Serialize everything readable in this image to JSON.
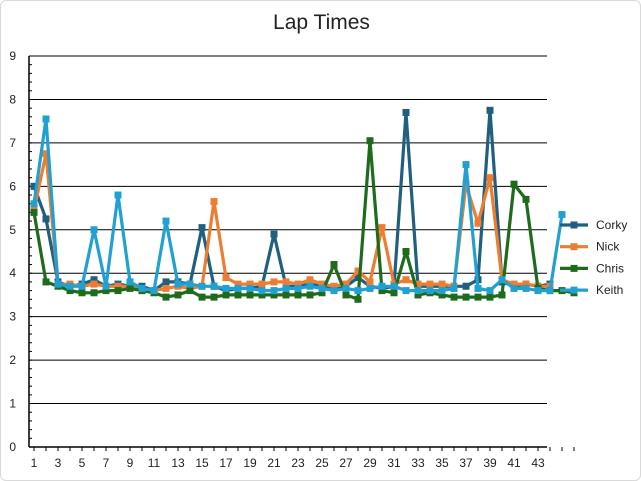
{
  "chart_data": {
    "type": "line",
    "title": "Lap Times",
    "xlabel": "",
    "ylabel": "",
    "ylim": [
      0,
      9
    ],
    "yticks": [
      "0",
      "1",
      "2",
      "3",
      "4",
      "5",
      "6",
      "7",
      "8",
      "9"
    ],
    "xlim": [
      1,
      46
    ],
    "xticks": [
      "1",
      "3",
      "5",
      "7",
      "9",
      "11",
      "13",
      "15",
      "17",
      "19",
      "21",
      "23",
      "25",
      "27",
      "29",
      "31",
      "33",
      "35",
      "37",
      "39",
      "41",
      "43"
    ],
    "grid": "horizontal",
    "legend_position": "right",
    "series": [
      {
        "name": "Corky",
        "color": "#1f5f7f",
        "x": [
          1,
          2,
          3,
          4,
          5,
          6,
          7,
          8,
          9,
          10,
          11,
          12,
          13,
          14,
          15,
          16,
          17,
          18,
          19,
          20,
          21,
          22,
          23,
          24,
          25,
          26,
          27,
          28,
          29,
          30,
          31,
          32,
          33,
          34,
          35,
          36,
          37,
          38,
          39,
          40,
          41,
          42,
          43,
          44
        ],
        "y": [
          6.0,
          5.25,
          3.8,
          3.7,
          3.75,
          3.85,
          3.7,
          3.75,
          3.7,
          3.7,
          3.6,
          3.8,
          3.8,
          3.75,
          5.05,
          3.7,
          3.6,
          3.65,
          3.65,
          3.7,
          4.9,
          3.7,
          3.7,
          3.75,
          3.7,
          3.65,
          3.7,
          3.9,
          3.7,
          3.65,
          3.7,
          7.7,
          3.7,
          3.7,
          3.7,
          3.7,
          3.7,
          3.85,
          7.75,
          3.8,
          3.7,
          3.75,
          3.7,
          3.75
        ]
      },
      {
        "name": "Nick",
        "color": "#ed7d31",
        "x": [
          1,
          2,
          3,
          4,
          5,
          6,
          7,
          8,
          9,
          10,
          11,
          12,
          13,
          14,
          15,
          16,
          17,
          18,
          19,
          20,
          21,
          22,
          23,
          24,
          25,
          26,
          27,
          28,
          29,
          30,
          31,
          32,
          33,
          34,
          35,
          36,
          37,
          38,
          39,
          40,
          41,
          42,
          43,
          44
        ],
        "y": [
          5.45,
          6.75,
          3.75,
          3.75,
          3.7,
          3.75,
          3.7,
          3.7,
          3.7,
          3.6,
          3.6,
          3.65,
          3.7,
          3.65,
          3.7,
          5.65,
          3.9,
          3.75,
          3.75,
          3.75,
          3.8,
          3.8,
          3.75,
          3.85,
          3.75,
          3.7,
          3.75,
          4.05,
          3.8,
          5.05,
          3.75,
          3.85,
          3.75,
          3.75,
          3.75,
          3.7,
          6.05,
          5.15,
          6.2,
          3.85,
          3.75,
          3.75,
          3.7,
          3.7
        ]
      },
      {
        "name": "Chris",
        "color": "#1e6b1e",
        "x": [
          1,
          2,
          3,
          4,
          5,
          6,
          7,
          8,
          9,
          10,
          11,
          12,
          13,
          14,
          15,
          16,
          17,
          18,
          19,
          20,
          21,
          22,
          23,
          24,
          25,
          26,
          27,
          28,
          29,
          30,
          31,
          32,
          33,
          34,
          35,
          36,
          37,
          38,
          39,
          40,
          41,
          42,
          43,
          44,
          45,
          46
        ],
        "y": [
          5.4,
          3.8,
          3.7,
          3.6,
          3.55,
          3.55,
          3.6,
          3.6,
          3.65,
          3.6,
          3.55,
          3.45,
          3.5,
          3.6,
          3.45,
          3.45,
          3.5,
          3.5,
          3.5,
          3.5,
          3.5,
          3.5,
          3.5,
          3.5,
          3.55,
          4.2,
          3.5,
          3.4,
          7.05,
          3.6,
          3.55,
          4.5,
          3.5,
          3.55,
          3.5,
          3.45,
          3.45,
          3.45,
          3.45,
          3.5,
          6.05,
          5.7,
          3.65,
          3.6,
          3.6,
          3.55
        ]
      },
      {
        "name": "Keith",
        "color": "#21a0d2",
        "x": [
          1,
          2,
          3,
          4,
          5,
          6,
          7,
          8,
          9,
          10,
          11,
          12,
          13,
          14,
          15,
          16,
          17,
          18,
          19,
          20,
          21,
          22,
          23,
          24,
          25,
          26,
          27,
          28,
          29,
          30,
          31,
          32,
          33,
          34,
          35,
          36,
          37,
          38,
          39,
          40,
          41,
          42,
          43,
          44,
          45
        ],
        "y": [
          5.6,
          7.55,
          3.75,
          3.7,
          3.7,
          5.0,
          3.7,
          5.8,
          3.8,
          3.65,
          3.6,
          5.2,
          3.75,
          3.75,
          3.7,
          3.7,
          3.65,
          3.65,
          3.65,
          3.6,
          3.6,
          3.65,
          3.65,
          3.7,
          3.65,
          3.6,
          3.65,
          3.6,
          3.65,
          3.7,
          3.7,
          3.6,
          3.6,
          3.6,
          3.6,
          3.65,
          6.5,
          3.65,
          3.6,
          3.85,
          3.65,
          3.65,
          3.6,
          3.6,
          5.35
        ]
      }
    ]
  }
}
